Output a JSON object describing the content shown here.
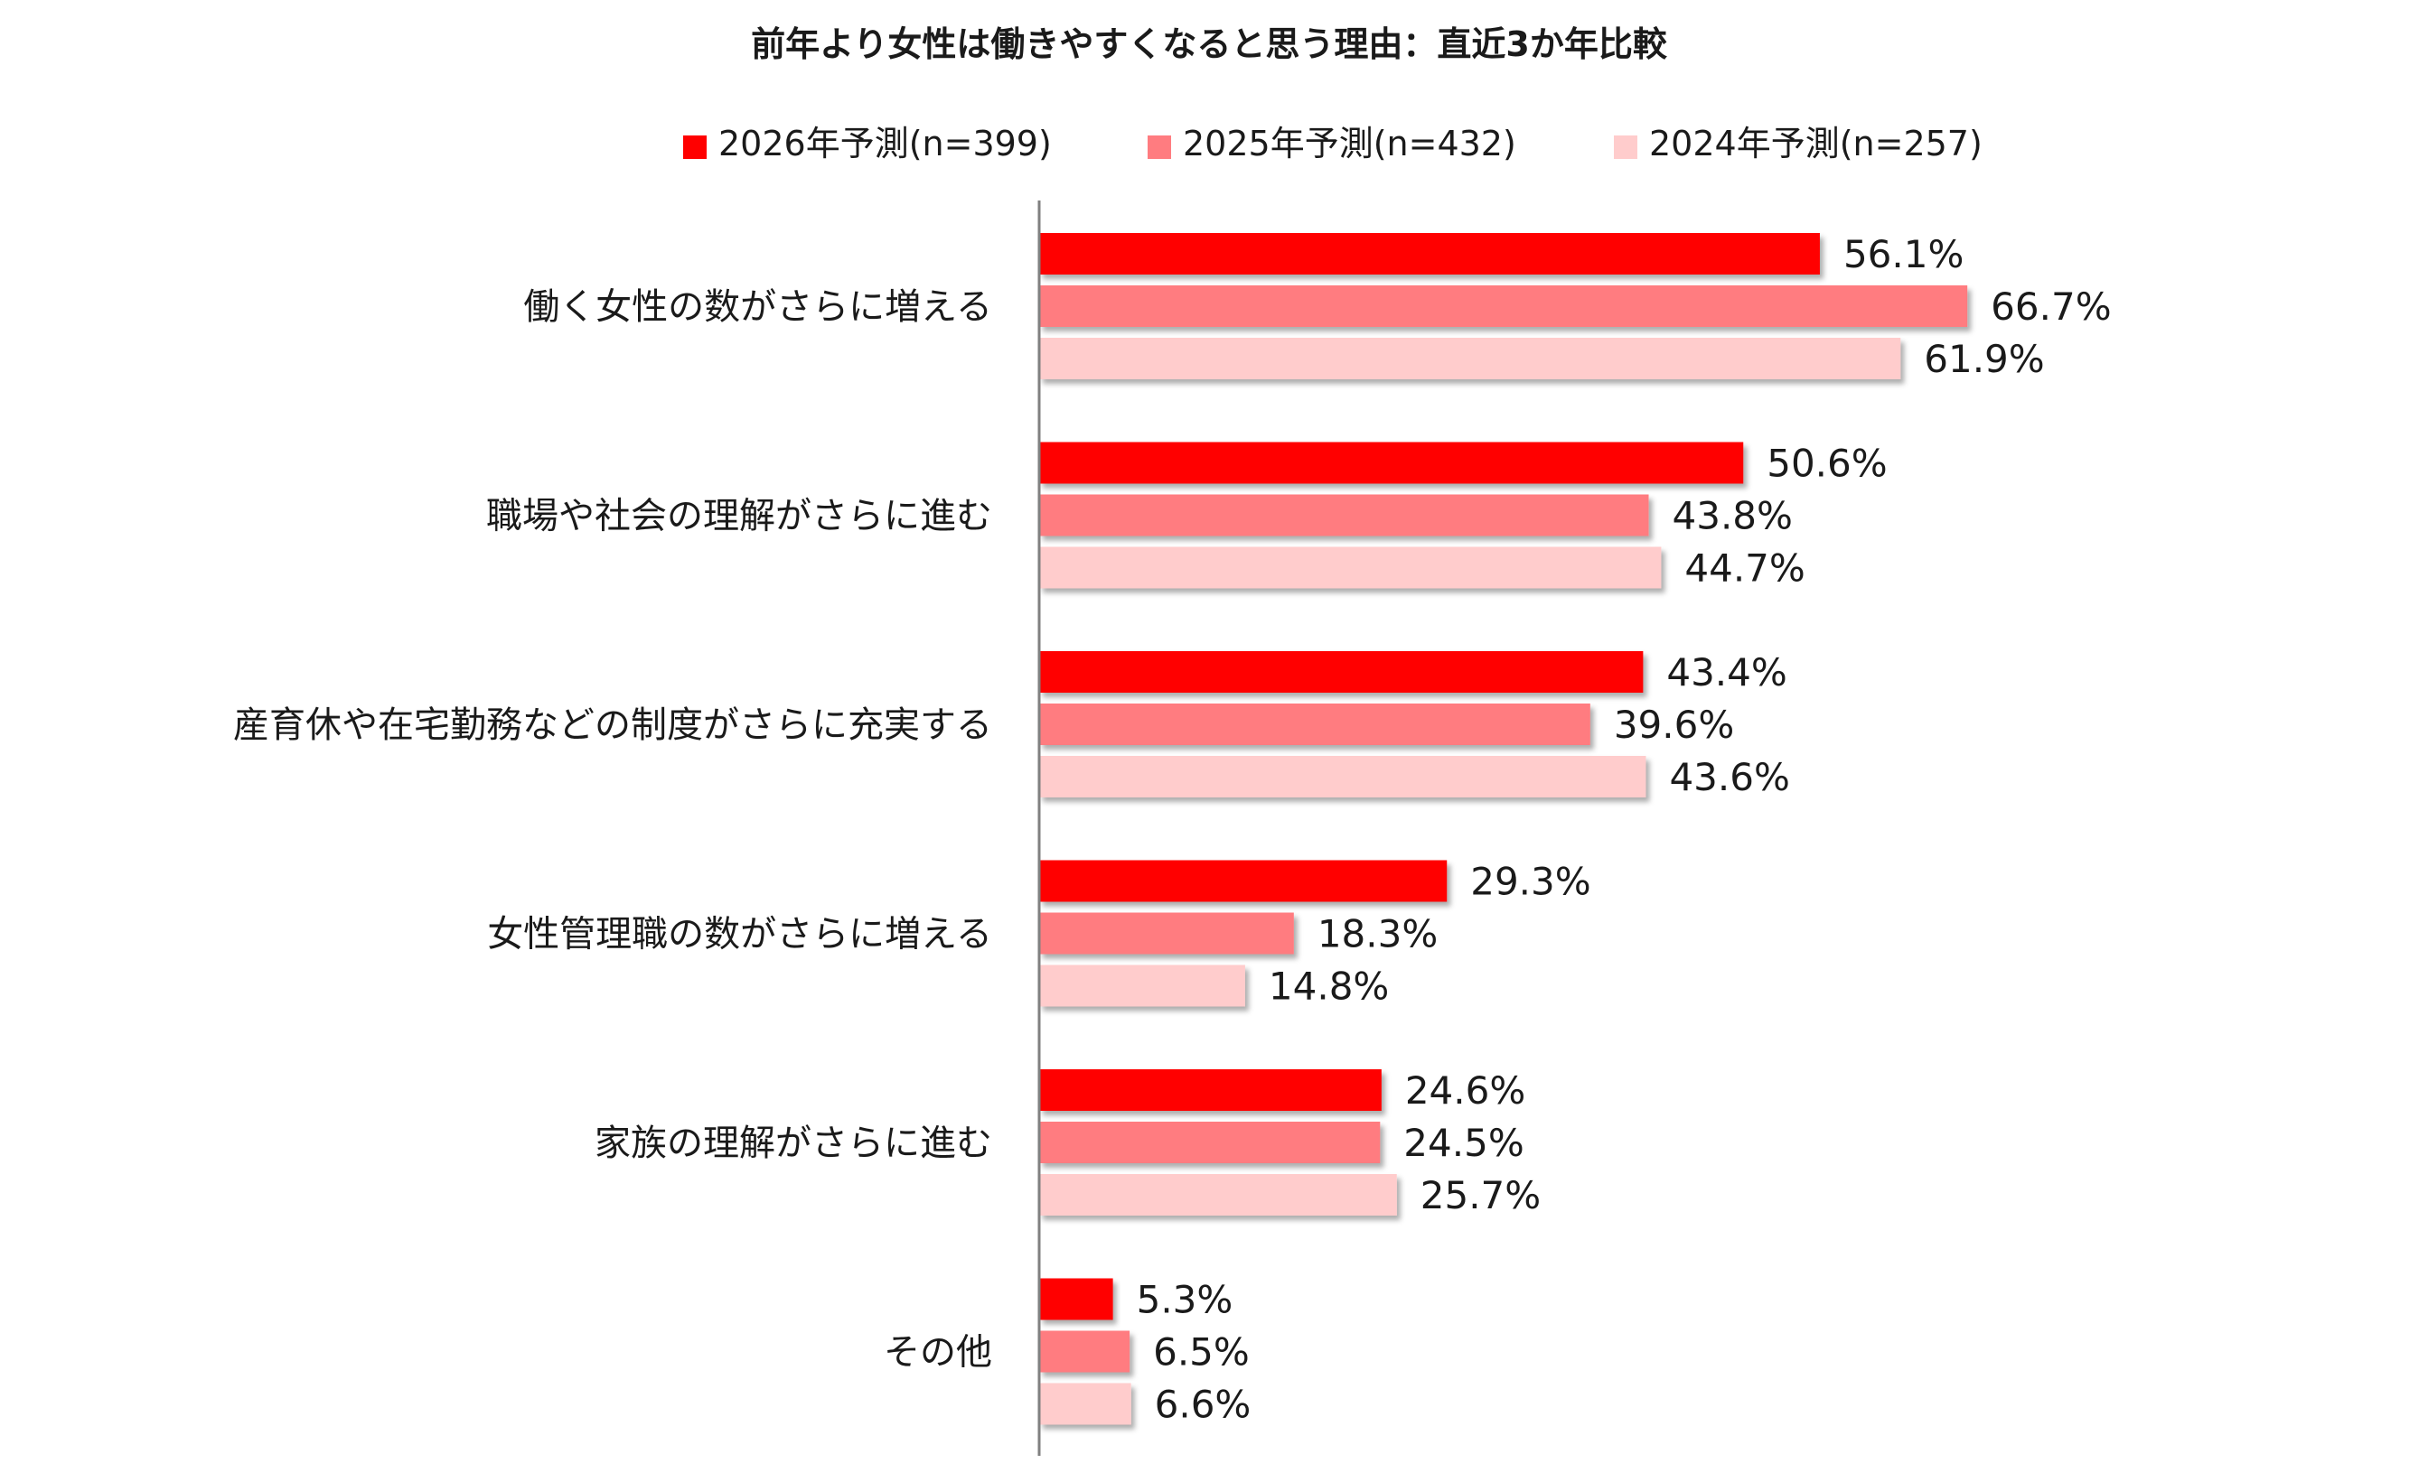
{
  "chart_data": {
    "type": "bar",
    "orientation": "horizontal",
    "title": "前年より女性は働きやすくなると思う理由：直近3か年比較",
    "categories": [
      "働く女性の数がさらに増える",
      "職場や社会の理解がさらに進む",
      "産育休や在宅勤務などの制度がさらに充実する",
      "女性管理職の数がさらに増える",
      "家族の理解がさらに進む",
      "その他"
    ],
    "series": [
      {
        "name": "2026年予測(n=399)",
        "color": "#ff0000",
        "values": [
          56.1,
          50.6,
          43.4,
          29.3,
          24.6,
          5.3
        ],
        "labels": [
          "56.1%",
          "50.6%",
          "43.4%",
          "29.3%",
          "24.6%",
          "5.3%"
        ]
      },
      {
        "name": "2025年予測(n=432)",
        "color": "#ff7c80",
        "values": [
          66.7,
          43.8,
          39.6,
          18.3,
          24.5,
          6.5
        ],
        "labels": [
          "66.7%",
          "43.8%",
          "39.6%",
          "18.3%",
          "24.5%",
          "6.5%"
        ]
      },
      {
        "name": "2024年予測(n=257)",
        "color": "#ffcccc",
        "values": [
          61.9,
          44.7,
          43.6,
          14.8,
          25.7,
          6.6
        ],
        "labels": [
          "61.9%",
          "44.7%",
          "43.6%",
          "14.8%",
          "25.7%",
          "6.6%"
        ]
      }
    ],
    "xlim": [
      0,
      100
    ],
    "grid": false,
    "legend_position": "top"
  }
}
